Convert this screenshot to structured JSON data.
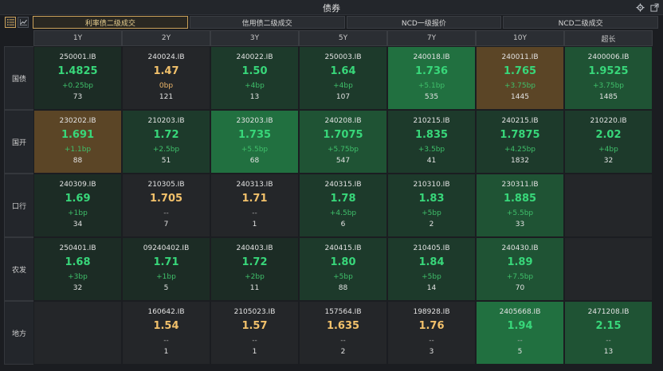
{
  "window": {
    "title": "债券"
  },
  "icons": {
    "settings": "gear-icon",
    "popout": "expand-icon",
    "list_view": "list-icon",
    "chart_view": "line-chart-icon"
  },
  "tabs": [
    {
      "label": "利率债二级成交",
      "active": true
    },
    {
      "label": "信用债二级成交",
      "active": false
    },
    {
      "label": "NCD一级报价",
      "active": false
    },
    {
      "label": "NCD二级成交",
      "active": false
    }
  ],
  "columns": [
    "1Y",
    "2Y",
    "3Y",
    "5Y",
    "7Y",
    "10Y",
    "超长"
  ],
  "rows": [
    {
      "label": "国债",
      "cells": [
        {
          "code": "250001.IB",
          "price": "1.4825",
          "change": "+0.25bp",
          "volume": "73",
          "level": 1,
          "pc": "green",
          "cc": "green"
        },
        {
          "code": "240024.IB",
          "price": "1.47",
          "change": "0bp",
          "volume": "121",
          "level": 0,
          "pc": "gold",
          "cc": "gold"
        },
        {
          "code": "240022.IB",
          "price": "1.50",
          "change": "+4bp",
          "volume": "13",
          "level": 2,
          "pc": "green",
          "cc": "green"
        },
        {
          "code": "250003.IB",
          "price": "1.64",
          "change": "+4bp",
          "volume": "107",
          "level": 2,
          "pc": "green",
          "cc": "green"
        },
        {
          "code": "240018.IB",
          "price": "1.736",
          "change": "+5.1bp",
          "volume": "535",
          "level": 4,
          "pc": "green",
          "cc": "green"
        },
        {
          "code": "240011.IB",
          "price": "1.765",
          "change": "+3.75bp",
          "volume": "1445",
          "level": 5,
          "pc": "green",
          "cc": "green"
        },
        {
          "code": "2400006.IB",
          "price": "1.9525",
          "change": "+3.75bp",
          "volume": "1485",
          "level": 3,
          "pc": "green",
          "cc": "green"
        }
      ]
    },
    {
      "label": "国开",
      "cells": [
        {
          "code": "230202.IB",
          "price": "1.691",
          "change": "+1.1bp",
          "volume": "88",
          "level": 5,
          "pc": "green",
          "cc": "green"
        },
        {
          "code": "210203.IB",
          "price": "1.72",
          "change": "+2.5bp",
          "volume": "51",
          "level": 2,
          "pc": "green",
          "cc": "green"
        },
        {
          "code": "230203.IB",
          "price": "1.735",
          "change": "+5.5bp",
          "volume": "68",
          "level": 4,
          "pc": "green",
          "cc": "green"
        },
        {
          "code": "240208.IB",
          "price": "1.7075",
          "change": "+5.75bp",
          "volume": "547",
          "level": 3,
          "pc": "green",
          "cc": "green"
        },
        {
          "code": "210215.IB",
          "price": "1.835",
          "change": "+3.5bp",
          "volume": "41",
          "level": 2,
          "pc": "green",
          "cc": "green"
        },
        {
          "code": "240215.IB",
          "price": "1.7875",
          "change": "+4.25bp",
          "volume": "1832",
          "level": 2,
          "pc": "green",
          "cc": "green"
        },
        {
          "code": "210220.IB",
          "price": "2.02",
          "change": "+4bp",
          "volume": "32",
          "level": 2,
          "pc": "green",
          "cc": "green"
        }
      ]
    },
    {
      "label": "口行",
      "cells": [
        {
          "code": "240309.IB",
          "price": "1.69",
          "change": "+1bp",
          "volume": "34",
          "level": 1,
          "pc": "green",
          "cc": "green"
        },
        {
          "code": "210305.IB",
          "price": "1.705",
          "change": "--",
          "volume": "7",
          "level": 0,
          "pc": "gold",
          "cc": "grey"
        },
        {
          "code": "240313.IB",
          "price": "1.71",
          "change": "--",
          "volume": "1",
          "level": 0,
          "pc": "gold",
          "cc": "grey"
        },
        {
          "code": "240315.IB",
          "price": "1.78",
          "change": "+4.5bp",
          "volume": "6",
          "level": 2,
          "pc": "green",
          "cc": "green"
        },
        {
          "code": "210310.IB",
          "price": "1.83",
          "change": "+5bp",
          "volume": "2",
          "level": 2,
          "pc": "green",
          "cc": "green"
        },
        {
          "code": "230311.IB",
          "price": "1.885",
          "change": "+5.5bp",
          "volume": "33",
          "level": 3,
          "pc": "green",
          "cc": "green"
        },
        {
          "code": "",
          "price": "",
          "change": "",
          "volume": "",
          "level": 0,
          "pc": "green",
          "cc": "green"
        }
      ]
    },
    {
      "label": "农发",
      "cells": [
        {
          "code": "250401.IB",
          "price": "1.68",
          "change": "+3bp",
          "volume": "32",
          "level": 1,
          "pc": "green",
          "cc": "green"
        },
        {
          "code": "09240402.IB",
          "price": "1.71",
          "change": "+1bp",
          "volume": "5",
          "level": 1,
          "pc": "green",
          "cc": "green"
        },
        {
          "code": "240403.IB",
          "price": "1.72",
          "change": "+2bp",
          "volume": "11",
          "level": 1,
          "pc": "green",
          "cc": "green"
        },
        {
          "code": "240415.IB",
          "price": "1.80",
          "change": "+5bp",
          "volume": "88",
          "level": 2,
          "pc": "green",
          "cc": "green"
        },
        {
          "code": "210405.IB",
          "price": "1.84",
          "change": "+5bp",
          "volume": "14",
          "level": 2,
          "pc": "green",
          "cc": "green"
        },
        {
          "code": "240430.IB",
          "price": "1.89",
          "change": "+7.5bp",
          "volume": "70",
          "level": 3,
          "pc": "green",
          "cc": "green"
        },
        {
          "code": "",
          "price": "",
          "change": "",
          "volume": "",
          "level": 0,
          "pc": "green",
          "cc": "green"
        }
      ]
    },
    {
      "label": "地方",
      "cells": [
        {
          "code": "",
          "price": "",
          "change": "",
          "volume": "",
          "level": 0,
          "pc": "green",
          "cc": "green"
        },
        {
          "code": "160642.IB",
          "price": "1.54",
          "change": "--",
          "volume": "1",
          "level": 0,
          "pc": "gold",
          "cc": "grey"
        },
        {
          "code": "2105023.IB",
          "price": "1.57",
          "change": "--",
          "volume": "1",
          "level": 0,
          "pc": "gold",
          "cc": "grey"
        },
        {
          "code": "157564.IB",
          "price": "1.635",
          "change": "--",
          "volume": "2",
          "level": 0,
          "pc": "gold",
          "cc": "grey"
        },
        {
          "code": "198928.IB",
          "price": "1.76",
          "change": "--",
          "volume": "3",
          "level": 0,
          "pc": "gold",
          "cc": "grey"
        },
        {
          "code": "2405668.IB",
          "price": "1.94",
          "change": "--",
          "volume": "5",
          "level": 4,
          "pc": "green",
          "cc": "grey"
        },
        {
          "code": "2471208.IB",
          "price": "2.15",
          "change": "--",
          "volume": "13",
          "level": 3,
          "pc": "green",
          "cc": "grey"
        }
      ]
    }
  ]
}
